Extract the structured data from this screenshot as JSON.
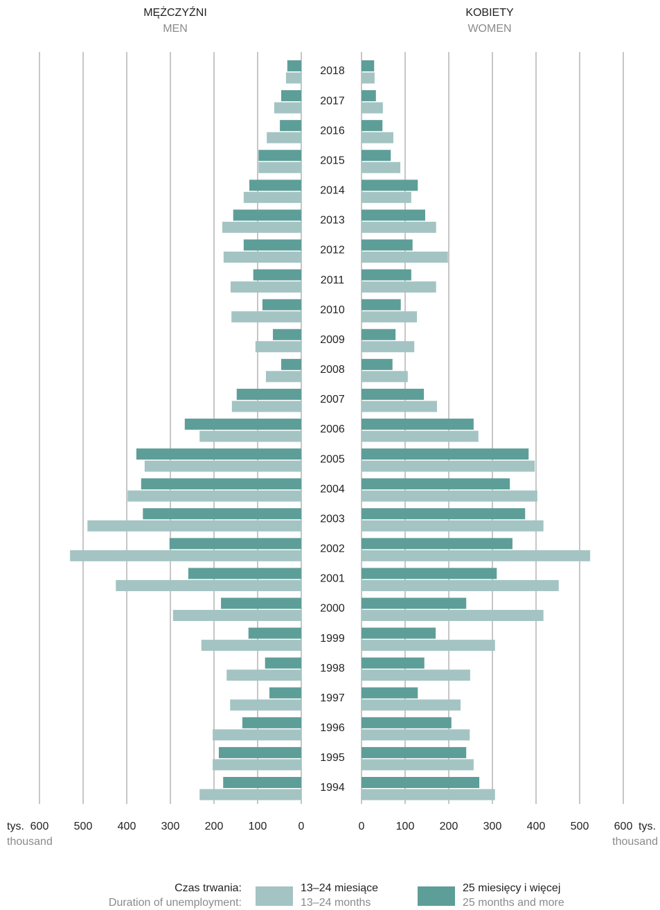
{
  "chart_data": {
    "type": "pyramid",
    "categories": [
      "2018",
      "2017",
      "2016",
      "2015",
      "2014",
      "2013",
      "2012",
      "2011",
      "2010",
      "2009",
      "2008",
      "2007",
      "2006",
      "2005",
      "2004",
      "2003",
      "2002",
      "2001",
      "2000",
      "1999",
      "1998",
      "1997",
      "1996",
      "1995",
      "1994"
    ],
    "xlim": [
      0,
      600
    ],
    "xticks": [
      0,
      100,
      200,
      300,
      400,
      500,
      600
    ],
    "unit": "tys.",
    "unit_en": "thousand",
    "grid": true,
    "legend": {
      "title": "Czas trwania:",
      "title_en": "Duration of unemployment:",
      "items": [
        {
          "name": "13–24 miesiące",
          "name_en": "13–24 months",
          "color": "#a3c4c2"
        },
        {
          "name": "25 miesięcy i więcej",
          "name_en": "25 months and  more",
          "color": "#5e9e98"
        }
      ]
    },
    "panels": [
      {
        "title": "MĘŻCZYŹNI",
        "subtitle": "MEN",
        "series": [
          {
            "values": [
              35,
              62,
              79,
              98,
              132,
              181,
              178,
              162,
              160,
              105,
              81,
              159,
              233,
              359,
              398,
              490,
              530,
              425,
              294,
              229,
              171,
              163,
              203,
              203,
              233
            ]
          },
          {
            "values": [
              32,
              46,
              49,
              98,
              119,
              156,
              132,
              110,
              89,
              65,
              46,
              148,
              267,
              378,
              367,
              363,
              302,
              259,
              184,
              121,
              83,
              73,
              135,
              189,
              179
            ]
          }
        ]
      },
      {
        "title": "KOBIETY",
        "subtitle": "WOMEN",
        "series": [
          {
            "values": [
              30,
              49,
              73,
              89,
              114,
              171,
              198,
              171,
              127,
              121,
              106,
              173,
              268,
              397,
              403,
              417,
              524,
              452,
              417,
              306,
              249,
              227,
              248,
              257,
              306
            ]
          },
          {
            "values": [
              29,
              33,
              48,
              67,
              129,
              146,
              117,
              114,
              90,
              78,
              71,
              143,
              257,
              383,
              340,
              375,
              346,
              310,
              240,
              170,
              144,
              129,
              206,
              240,
              270
            ]
          }
        ]
      }
    ]
  }
}
